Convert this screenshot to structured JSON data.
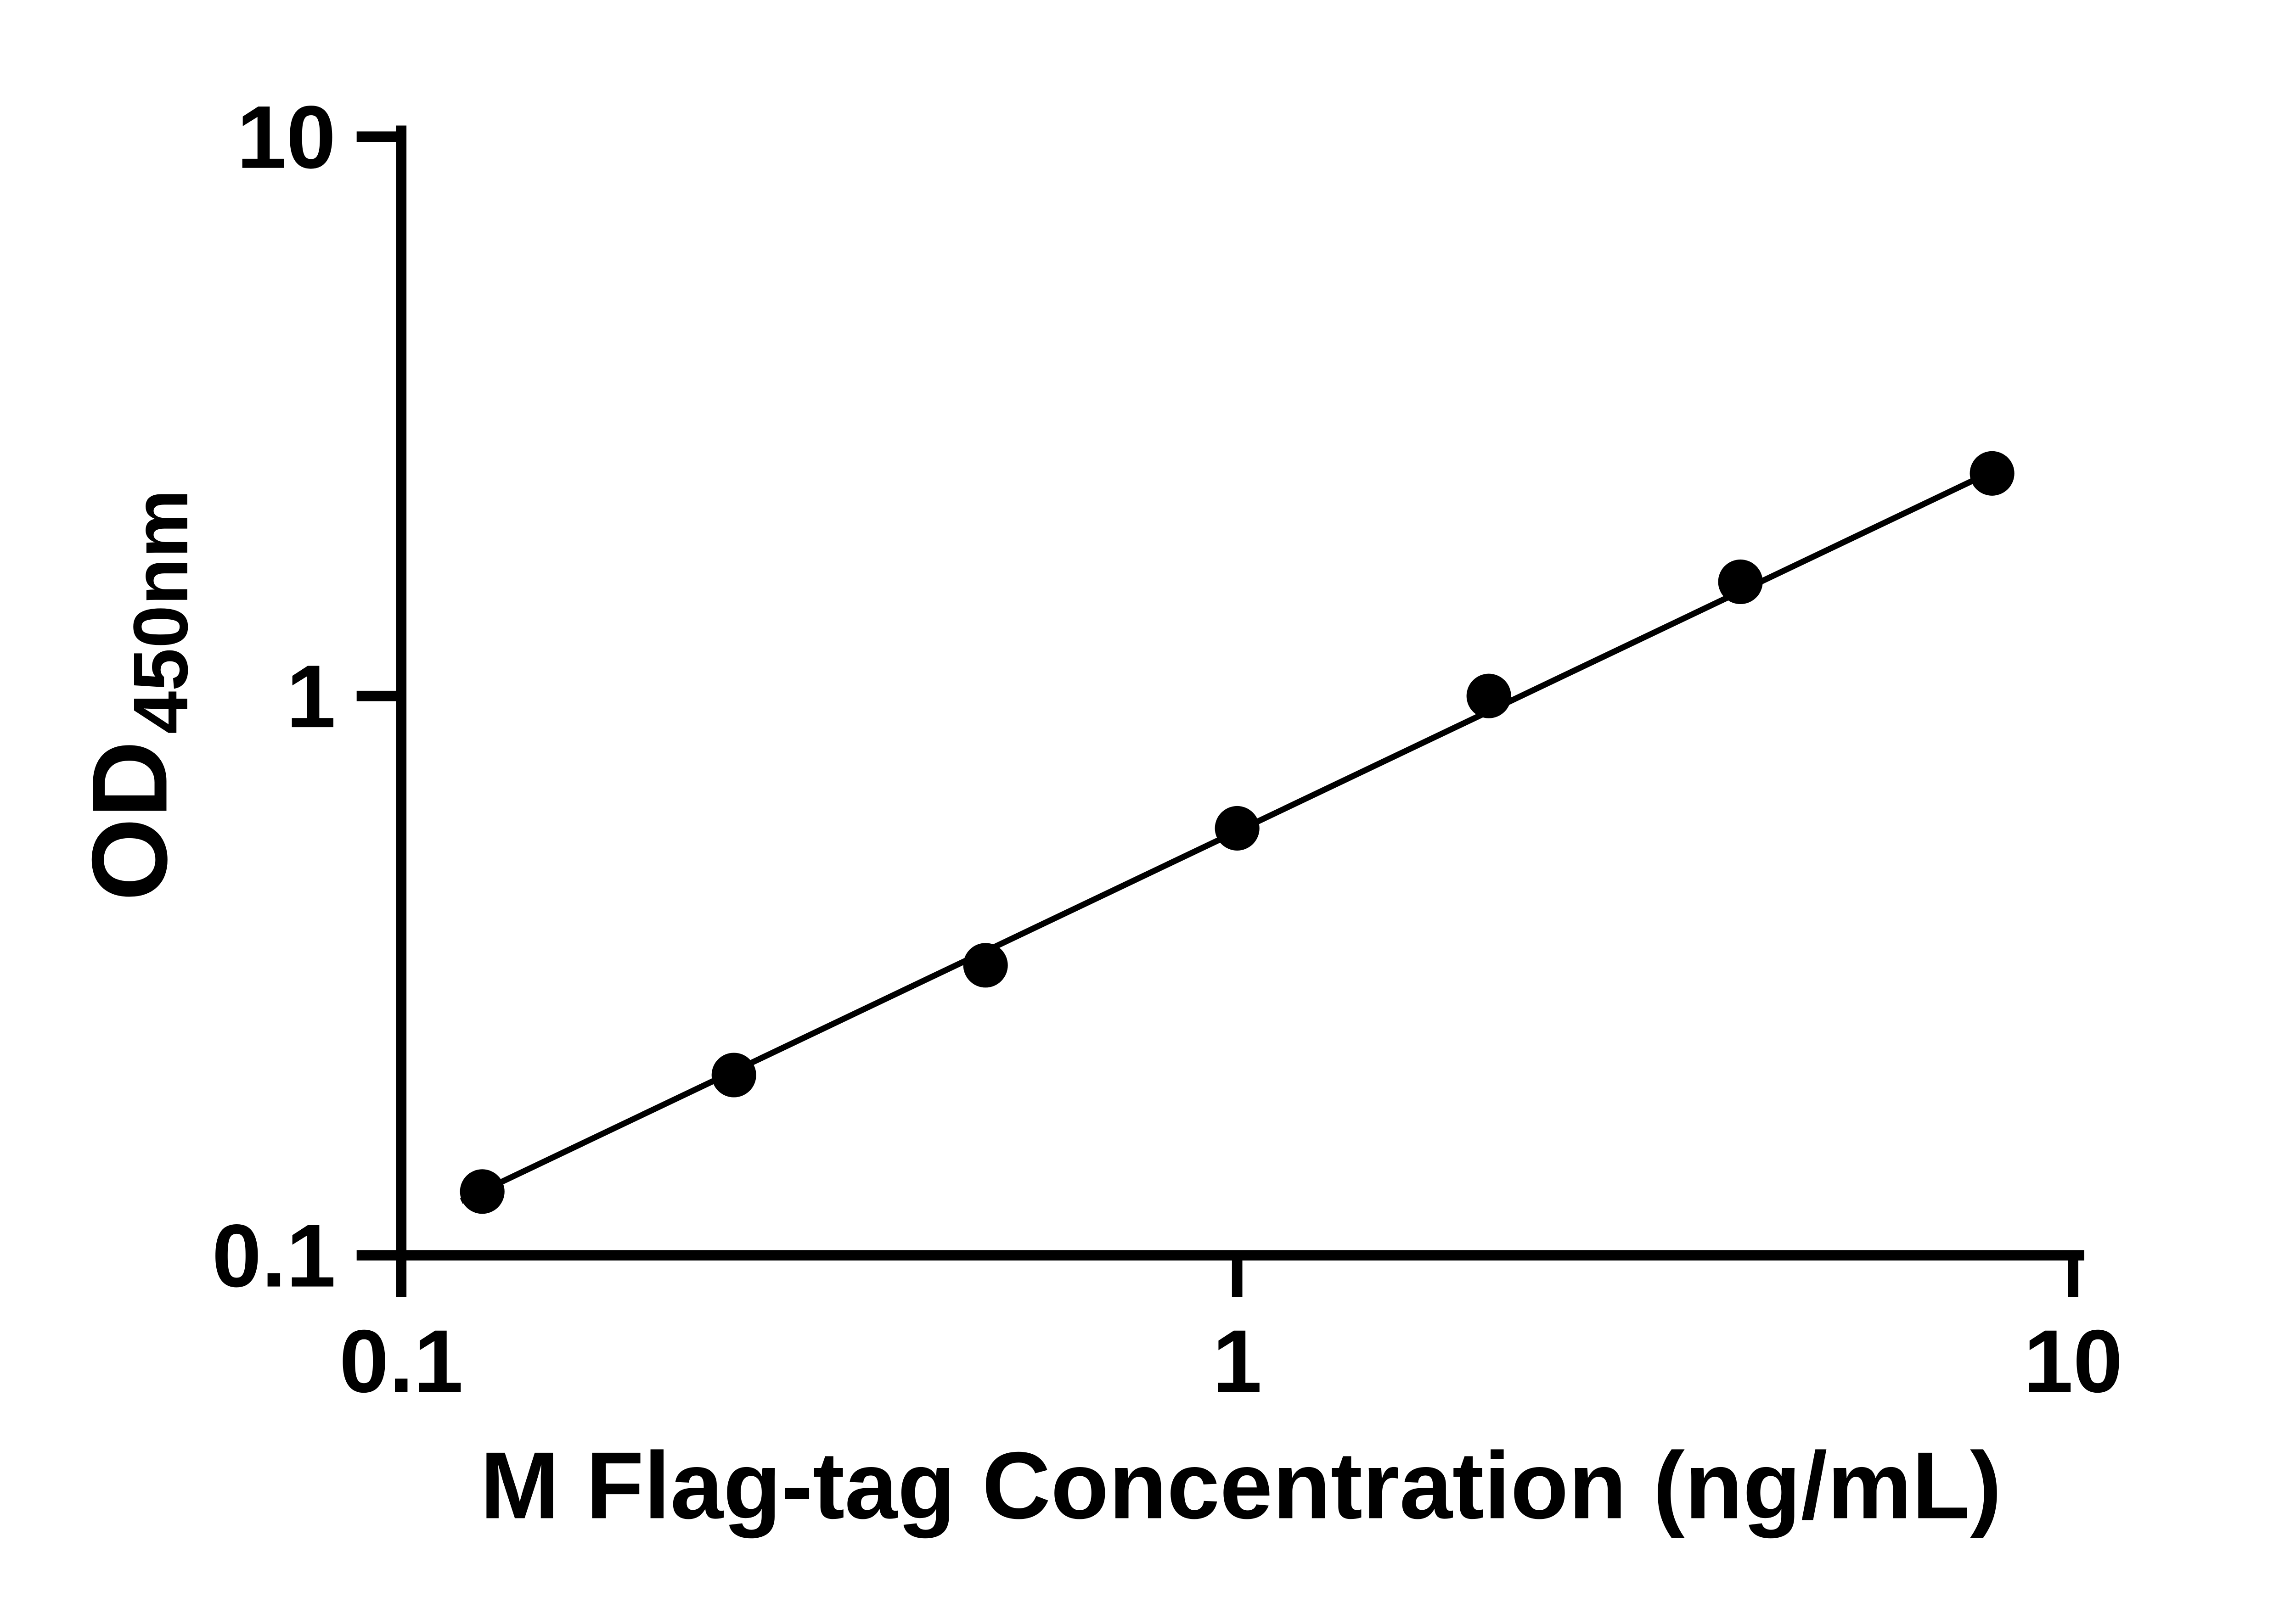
{
  "chart_data": {
    "type": "scatter",
    "title": "",
    "xlabel": "M Flag-tag Concentration (ng/mL)",
    "ylabel_main": "OD",
    "ylabel_sub": "450nm",
    "xscale": "log",
    "yscale": "log",
    "xlim": [
      0.1,
      10
    ],
    "ylim": [
      0.1,
      10
    ],
    "x_ticks": [
      0.1,
      1,
      10
    ],
    "x_tick_labels": [
      "0.1",
      "1",
      "10"
    ],
    "y_ticks": [
      0.1,
      1,
      10
    ],
    "y_tick_labels": [
      "0.1",
      "1",
      "10"
    ],
    "grid": false,
    "legend": false,
    "marker_color": "#000000",
    "line_color": "#000000",
    "x": [
      0.125,
      0.25,
      0.5,
      1,
      2,
      4,
      8
    ],
    "y": [
      0.13,
      0.21,
      0.33,
      0.58,
      1.0,
      1.6,
      2.5
    ],
    "trendline": {
      "x1": 0.118,
      "y1": 0.125,
      "x2": 8,
      "y2": 2.52
    }
  }
}
